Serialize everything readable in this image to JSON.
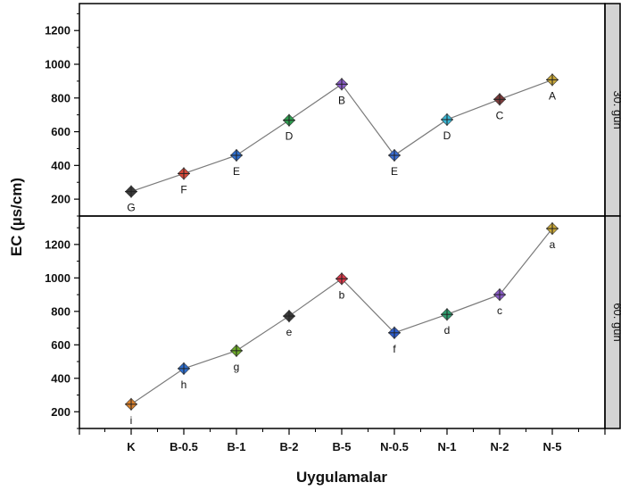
{
  "chart_data": {
    "type": "line",
    "ylabel": "EC (µs/cm)",
    "xlabel": "Uygulamalar",
    "categories": [
      "K",
      "B-0.5",
      "B-1",
      "B-2",
      "B-5",
      "N-0.5",
      "N-1",
      "N-2",
      "N-5"
    ],
    "marker_colors": [
      "#3a3a3a",
      "#d94a3a",
      "#2f6fcf",
      "#2e9e4f",
      "#8a5cc8",
      "#3a6fd6",
      "#3ab8d6",
      "#7a3a3a",
      "#c9a83a"
    ],
    "line_color": "#7a7a7a",
    "strip_color": "#d4d4d4",
    "panels": [
      {
        "name": "30. gün",
        "ylim": [
          100,
          1360
        ],
        "yticks": [
          200,
          400,
          600,
          800,
          1000,
          1200
        ],
        "values": [
          245,
          352,
          460,
          668,
          882,
          460,
          672,
          792,
          908
        ],
        "letters": [
          "G",
          "F",
          "E",
          "D",
          "B",
          "E",
          "D",
          "C",
          "A"
        ]
      },
      {
        "name": "60. gün",
        "ylim": [
          100,
          1370
        ],
        "yticks": [
          200,
          400,
          600,
          800,
          1000,
          1200
        ],
        "values": [
          245,
          458,
          565,
          772,
          995,
          672,
          782,
          900,
          1295
        ],
        "letters": [
          "i",
          "h",
          "g",
          "e",
          "b",
          "f",
          "d",
          "c",
          "a"
        ],
        "marker_colors": [
          "#d9822e",
          "#2f6fcf",
          "#6fae2a",
          "#3a3a3a",
          "#d93a4a",
          "#2f5fcf",
          "#2e9e6f",
          "#8a5cc8",
          "#c9a83a"
        ]
      }
    ],
    "grid": false
  }
}
